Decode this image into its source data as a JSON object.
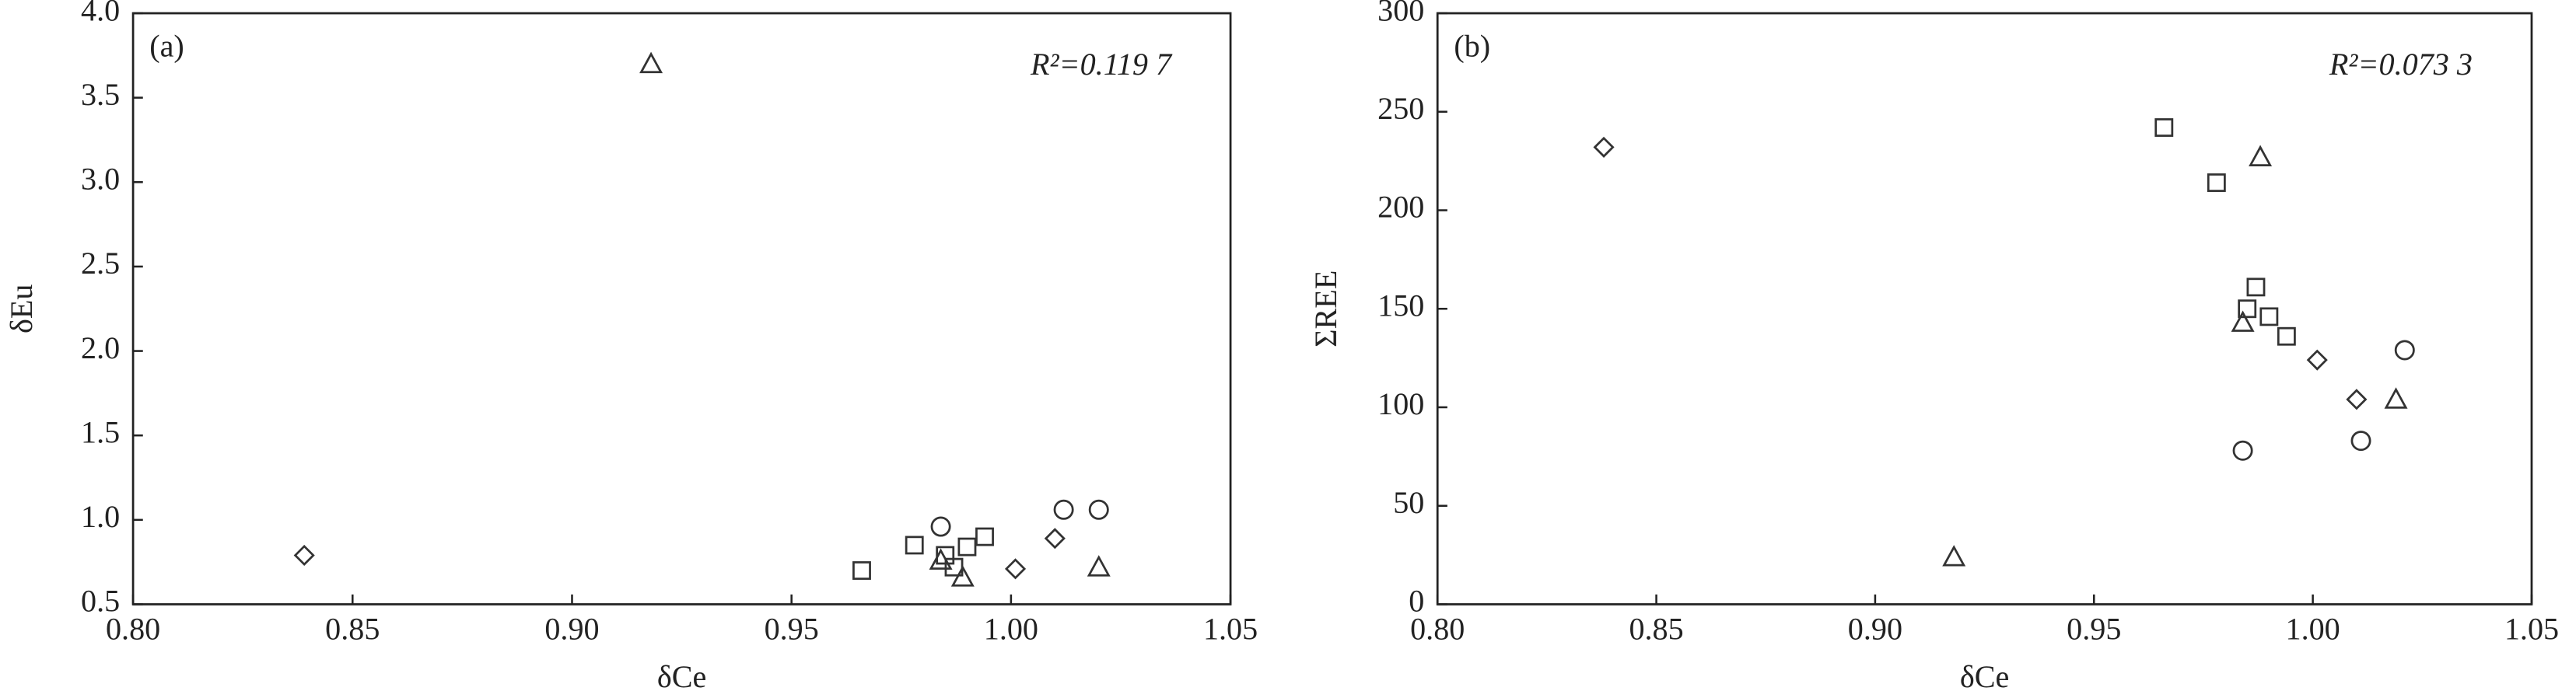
{
  "chart_data": [
    {
      "type": "scatter",
      "panel_label": "(a)",
      "x_label": "δCe",
      "y_label": "δEu",
      "annotation": "R²=0.119 7",
      "xlim": [
        0.8,
        1.05
      ],
      "ylim": [
        0.5,
        4.0
      ],
      "xticks": [
        {
          "value": 0.8,
          "label": "0.80"
        },
        0.85,
        {
          "value": 0.9,
          "label": "0.90"
        },
        0.95,
        {
          "value": 1.0,
          "label": "1.00"
        },
        1.05
      ],
      "yticks": [
        0.5,
        {
          "value": 1.0,
          "label": "1.0"
        },
        1.5,
        {
          "value": 2.0,
          "label": "2.0"
        },
        2.5,
        {
          "value": 3.0,
          "label": "3.0"
        },
        3.5,
        {
          "value": 4.0,
          "label": "4.0"
        }
      ],
      "series": [
        {
          "marker": "diamond",
          "color": "#333333",
          "x": [
            0.839,
            1.001,
            1.01
          ],
          "values": [
            0.79,
            0.71,
            0.89
          ]
        },
        {
          "marker": "triangle",
          "color": "#333333",
          "x": [
            0.918,
            0.984,
            0.989,
            1.02
          ],
          "values": [
            3.7,
            0.76,
            0.66,
            0.72
          ]
        },
        {
          "marker": "square",
          "color": "#333333",
          "x": [
            0.966,
            0.978,
            0.985,
            0.987,
            0.99,
            0.994
          ],
          "values": [
            0.7,
            0.85,
            0.79,
            0.72,
            0.84,
            0.9
          ]
        },
        {
          "marker": "circle",
          "color": "#333333",
          "x": [
            0.984,
            1.012,
            1.02
          ],
          "values": [
            0.96,
            1.06,
            1.06
          ]
        }
      ]
    },
    {
      "type": "scatter",
      "panel_label": "(b)",
      "x_label": "δCe",
      "y_label": "ΣREE",
      "annotation": "R²=0.073 3",
      "xlim": [
        0.8,
        1.05
      ],
      "ylim": [
        0,
        300
      ],
      "xticks": [
        {
          "value": 0.8,
          "label": "0.80"
        },
        0.85,
        {
          "value": 0.9,
          "label": "0.90"
        },
        0.95,
        {
          "value": 1.0,
          "label": "1.00"
        },
        1.05
      ],
      "yticks": [
        0,
        50,
        100,
        150,
        200,
        250,
        300
      ],
      "series": [
        {
          "marker": "diamond",
          "color": "#333333",
          "x": [
            0.838,
            1.001,
            1.01
          ],
          "values": [
            232,
            124,
            104
          ]
        },
        {
          "marker": "triangle",
          "color": "#333333",
          "x": [
            0.918,
            0.988,
            0.984,
            1.019
          ],
          "values": [
            24,
            227,
            143,
            104
          ]
        },
        {
          "marker": "square",
          "color": "#333333",
          "x": [
            0.966,
            0.978,
            0.987,
            0.985,
            0.99,
            0.994
          ],
          "values": [
            242,
            214,
            161,
            150,
            146,
            136
          ]
        },
        {
          "marker": "circle",
          "color": "#333333",
          "x": [
            0.984,
            1.011,
            1.021
          ],
          "values": [
            78,
            83,
            129
          ]
        }
      ]
    }
  ]
}
